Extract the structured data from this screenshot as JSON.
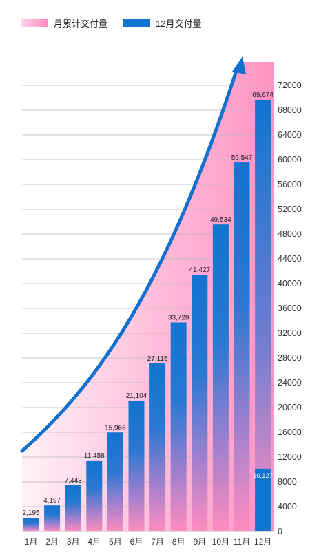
{
  "legend": {
    "cumulative_label": "月累计交付量",
    "month_label": "12月交付量"
  },
  "colors": {
    "bar_blue": "#1174d0",
    "bar_pink": "#ff86bd",
    "area_pink": "#ff9ccb",
    "grid": "#b8b8b8",
    "arrow": "#1370cf"
  },
  "chart_data": {
    "type": "bar",
    "categories": [
      "1月",
      "2月",
      "3月",
      "4月",
      "5月",
      "6月",
      "7月",
      "8月",
      "9月",
      "10月",
      "11月",
      "12月"
    ],
    "series": [
      {
        "name": "月累计交付量",
        "values": [
          2195,
          4197,
          7443,
          11458,
          15966,
          21104,
          27115,
          33728,
          41427,
          49534,
          59547,
          69674
        ],
        "data_labels": [
          "2,195",
          "4,197",
          "7,443",
          "11,458",
          "15,966",
          "21,104",
          "27,115",
          "33,728",
          "41,427",
          "49,534",
          "59,547",
          "69,674"
        ]
      },
      {
        "name": "12月交付量",
        "values": [
          null,
          null,
          null,
          null,
          null,
          null,
          null,
          null,
          null,
          null,
          null,
          10127
        ],
        "data_labels": [
          "",
          "",
          "",
          "",
          "",
          "",
          "",
          "",
          "",
          "",
          "",
          "10,127"
        ]
      }
    ],
    "yticks": [
      "0",
      "4000",
      "8000",
      "12000",
      "16000",
      "20000",
      "24000",
      "28000",
      "32000",
      "36000",
      "40000",
      "44000",
      "48000",
      "52000",
      "56000",
      "60000",
      "64000",
      "68000",
      "72000"
    ],
    "ylim": [
      0,
      72000
    ],
    "y_axis_position": "right",
    "grid": true,
    "legend_position": "top-left",
    "trend_arrow": true
  }
}
